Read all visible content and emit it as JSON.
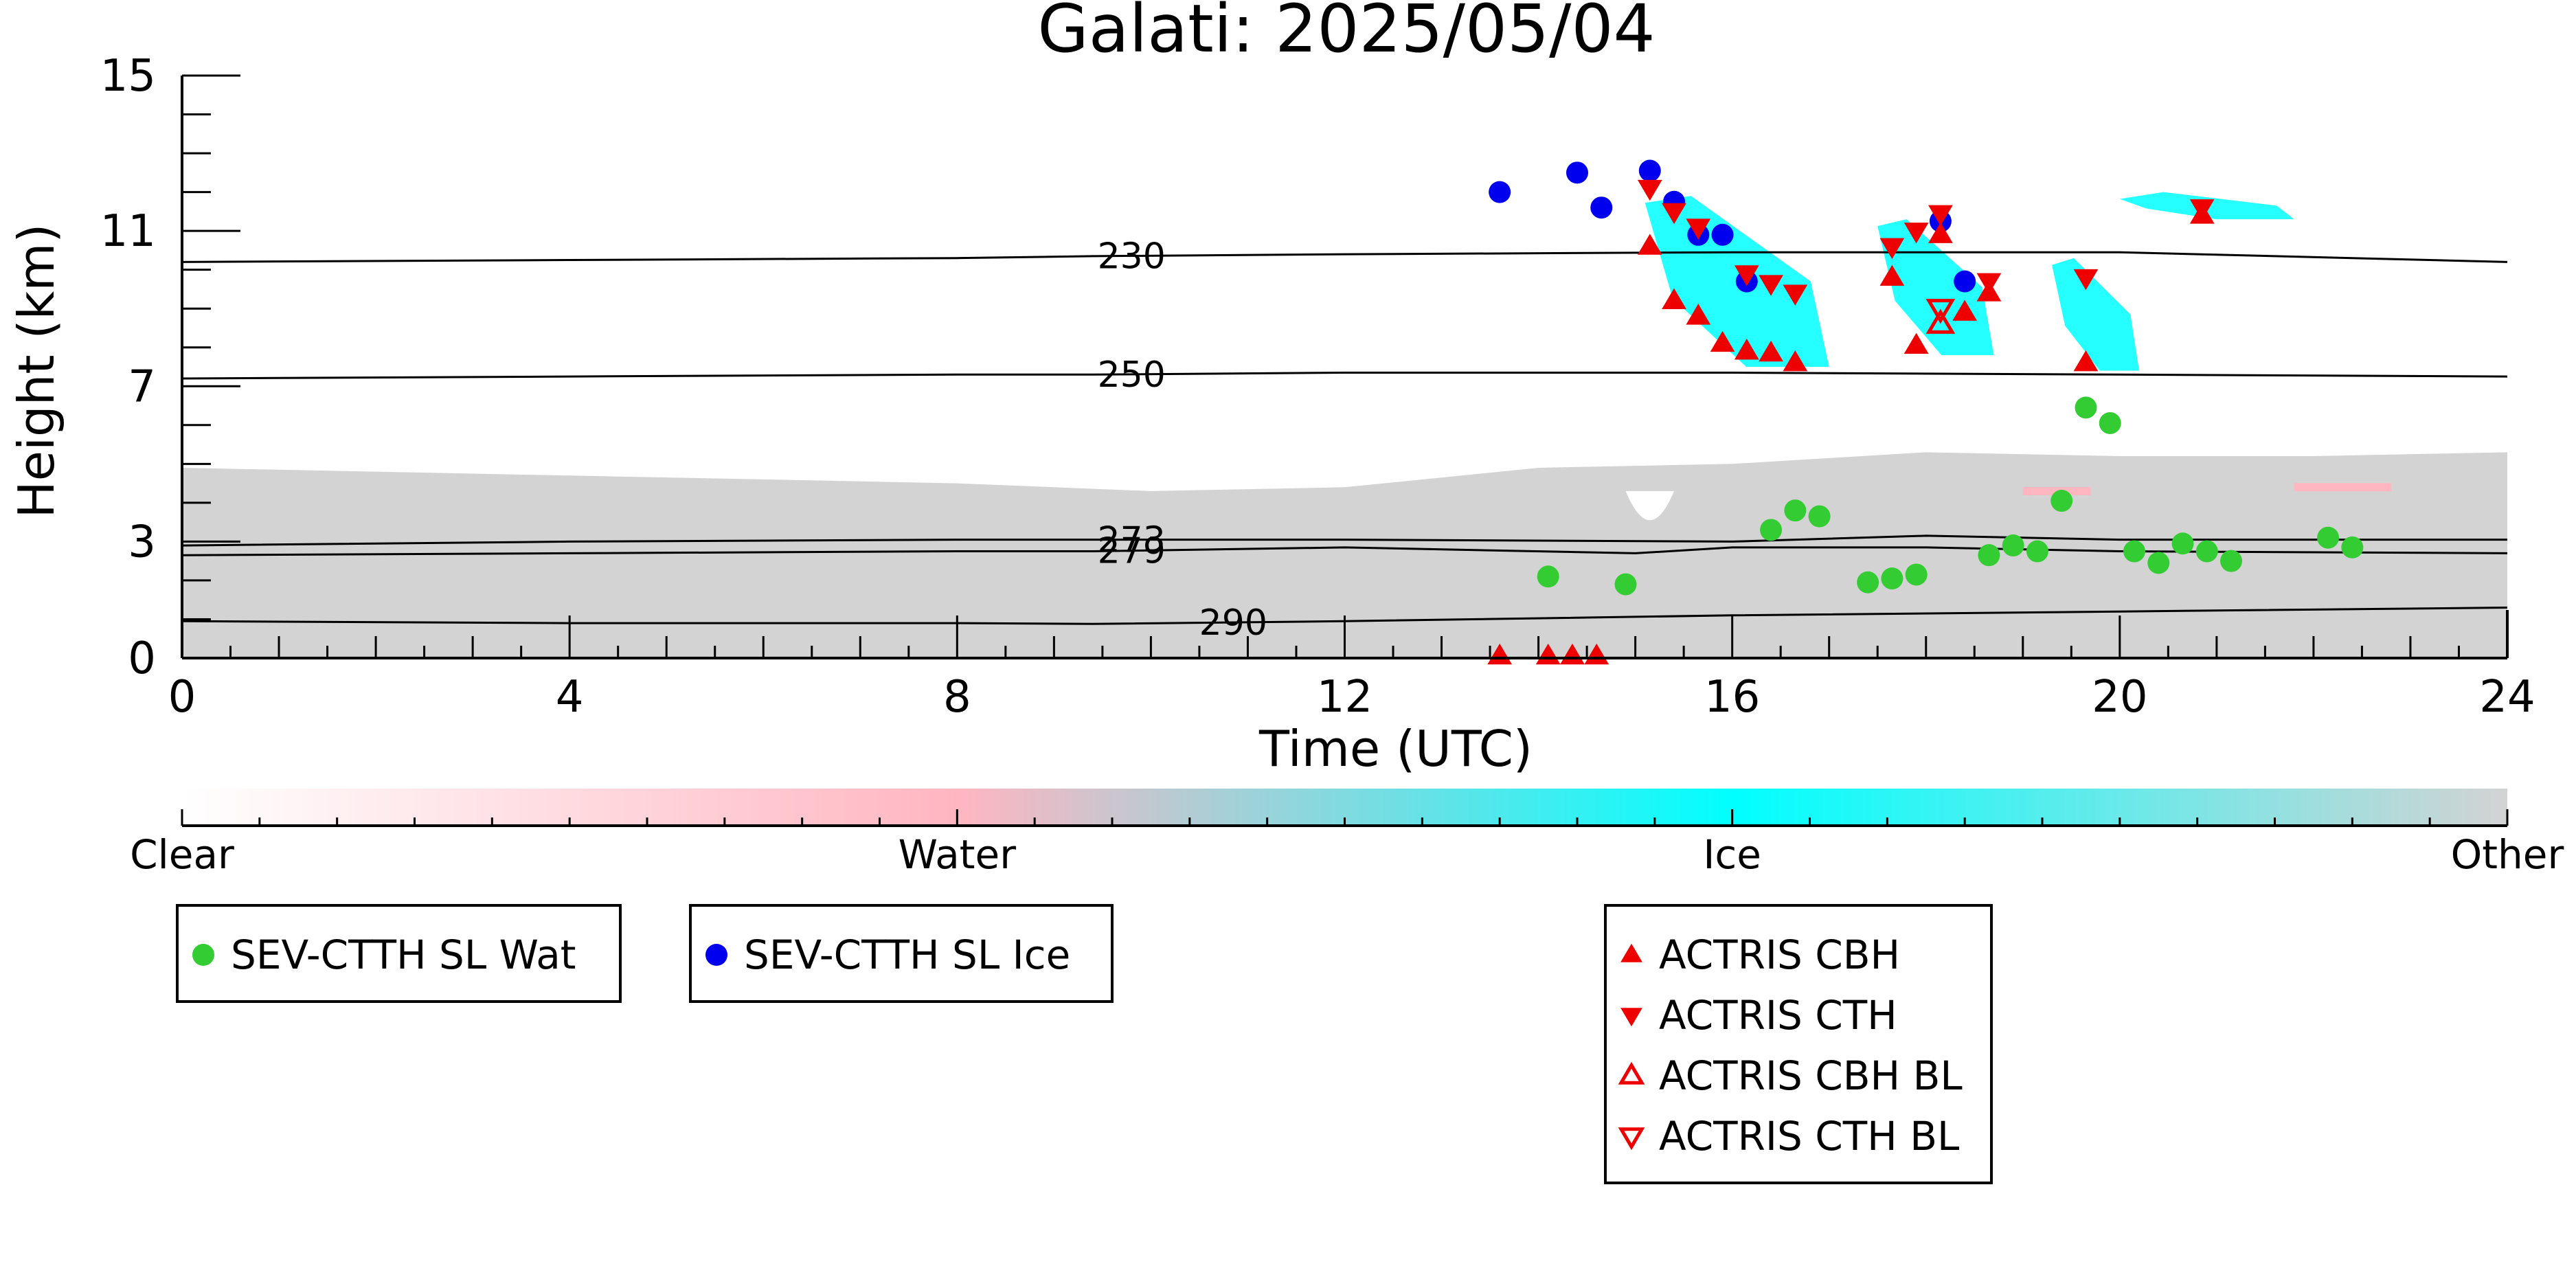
{
  "chart_data": {
    "type": "scatter",
    "title": "Galati: 2025/05/04",
    "xlabel": "Time (UTC)",
    "ylabel": "Height (km)",
    "xlim": [
      0,
      24
    ],
    "ylim": [
      0,
      15
    ],
    "x_ticks": [
      0,
      4,
      8,
      12,
      16,
      20,
      24
    ],
    "y_ticks": [
      0,
      3,
      7,
      11,
      15
    ],
    "colorbar": {
      "labels": [
        "Clear",
        "Water",
        "Ice",
        "Other"
      ],
      "colors": [
        "#ffffff",
        "#ffb6c1",
        "#00ffff",
        "#d3d3d3"
      ]
    },
    "isotherms": [
      {
        "label": "230",
        "x": [
          0,
          4,
          8,
          9.4,
          12,
          16,
          20,
          24
        ],
        "y": [
          10.2,
          10.25,
          10.3,
          10.35,
          10.4,
          10.45,
          10.45,
          10.2
        ]
      },
      {
        "label": "250",
        "x": [
          0,
          4,
          8,
          9.4,
          12,
          16,
          20,
          24
        ],
        "y": [
          7.2,
          7.25,
          7.3,
          7.3,
          7.35,
          7.35,
          7.3,
          7.25
        ]
      },
      {
        "label": "273",
        "x": [
          0,
          4,
          8,
          9.4,
          12,
          16,
          18,
          20,
          24
        ],
        "y": [
          2.9,
          3.0,
          3.05,
          3.05,
          3.05,
          3.0,
          3.15,
          3.05,
          3.05
        ]
      },
      {
        "label": "279",
        "x": [
          0,
          4,
          8,
          9.4,
          12,
          15,
          16,
          18,
          20,
          24
        ],
        "y": [
          2.65,
          2.7,
          2.75,
          2.75,
          2.85,
          2.7,
          2.85,
          2.85,
          2.75,
          2.7
        ]
      },
      {
        "label": "290",
        "x": [
          0,
          4,
          8,
          9.4,
          12,
          16,
          20,
          24
        ],
        "y": [
          0.95,
          0.9,
          0.9,
          0.88,
          0.95,
          1.1,
          1.2,
          1.3
        ]
      }
    ],
    "series": [
      {
        "name": "SEV-CTTH SL Wat",
        "color": "#33cc33",
        "marker": "circle",
        "x": [
          14.1,
          14.9,
          16.4,
          16.65,
          16.9,
          17.4,
          17.65,
          17.9,
          18.65,
          18.9,
          19.15,
          19.4,
          19.65,
          19.9,
          20.15,
          20.4,
          20.65,
          20.9,
          21.15,
          22.15,
          22.4
        ],
        "y": [
          2.1,
          1.9,
          3.3,
          3.8,
          3.65,
          1.95,
          2.05,
          2.15,
          2.65,
          2.9,
          2.75,
          4.05,
          6.45,
          6.05,
          2.75,
          2.45,
          2.95,
          2.75,
          2.5,
          3.1,
          2.85
        ]
      },
      {
        "name": "SEV-CTTH SL Ice",
        "color": "#0000ee",
        "marker": "circle",
        "x": [
          13.6,
          14.4,
          14.65,
          15.15,
          15.4,
          15.65,
          15.9,
          16.15,
          18.15,
          18.4
        ],
        "y": [
          12.0,
          12.5,
          11.6,
          12.55,
          11.75,
          10.9,
          10.9,
          9.7,
          11.25,
          9.7
        ]
      },
      {
        "name": "ACTRIS CBH",
        "color": "#ee0000",
        "marker": "triangle-up",
        "x": [
          13.6,
          14.1,
          14.35,
          14.6,
          15.15,
          15.4,
          15.65,
          15.9,
          16.15,
          16.4,
          16.65,
          17.65,
          17.9,
          18.15,
          18.4,
          18.65,
          19.65,
          20.85
        ],
        "y": [
          0.05,
          0.05,
          0.05,
          0.05,
          10.6,
          9.2,
          8.8,
          8.1,
          7.9,
          7.85,
          7.6,
          9.8,
          8.05,
          10.9,
          8.9,
          9.4,
          7.6,
          11.4
        ]
      },
      {
        "name": "ACTRIS CTH",
        "color": "#ee0000",
        "marker": "triangle-down",
        "x": [
          15.15,
          15.4,
          15.65,
          16.15,
          16.4,
          16.65,
          17.65,
          17.9,
          18.15,
          18.65,
          19.65,
          20.85
        ],
        "y": [
          12.1,
          11.5,
          11.1,
          9.9,
          9.65,
          9.4,
          10.6,
          11.0,
          11.45,
          9.7,
          9.8,
          11.6
        ]
      },
      {
        "name": "ACTRIS CBH BL",
        "color": "#ee0000",
        "marker": "triangle-up-open",
        "x": [
          18.15
        ],
        "y": [
          8.6
        ]
      },
      {
        "name": "ACTRIS CTH BL",
        "color": "#ee0000",
        "marker": "triangle-down-open",
        "x": [
          18.15
        ],
        "y": [
          9.0
        ]
      }
    ],
    "legends": [
      {
        "entries": [
          "SEV-CTTH SL Wat"
        ]
      },
      {
        "entries": [
          "SEV-CTTH SL Ice"
        ]
      },
      {
        "entries": [
          "ACTRIS CBH",
          "ACTRIS CTH",
          "ACTRIS CBH BL",
          "ACTRIS CTH BL"
        ]
      }
    ],
    "ice_cloud_regions": [
      {
        "x0": 15.1,
        "x1": 17.0,
        "y0": 7.5,
        "y1": 11.9
      },
      {
        "x0": 17.5,
        "x1": 18.7,
        "y0": 7.8,
        "y1": 11.3
      },
      {
        "x0": 19.3,
        "x1": 20.2,
        "y0": 7.4,
        "y1": 10.3
      },
      {
        "x0": 20.0,
        "x1": 21.8,
        "y0": 11.3,
        "y1": 12.0
      }
    ],
    "grey_region": {
      "x0": 0,
      "x1": 24,
      "top": [
        4.9,
        4.8,
        4.7,
        4.6,
        4.5,
        4.3,
        4.4,
        4.9,
        5.0,
        5.3,
        5.2,
        5.2,
        5.3
      ]
    }
  }
}
